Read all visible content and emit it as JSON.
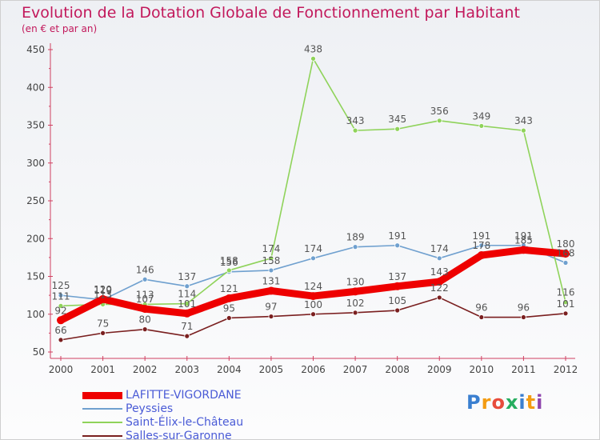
{
  "chart_data": {
    "type": "line",
    "title": "Evolution de la Dotation Globale de Fonctionnement par Habitant",
    "subtitle": "(en € et par an)",
    "xlabel": "",
    "ylabel": "",
    "categories": [
      "2000",
      "2001",
      "2002",
      "2003",
      "2004",
      "2005",
      "2006",
      "2007",
      "2008",
      "2009",
      "2010",
      "2011",
      "2012"
    ],
    "ylim": [
      50,
      450
    ],
    "yticks": [
      50,
      100,
      150,
      200,
      250,
      300,
      350,
      400,
      450
    ],
    "grid": false,
    "legend_position": "bottom-left",
    "series": [
      {
        "name": "LAFITTE-VIGORDANE",
        "color": "#ee0000",
        "values": [
          92,
          120,
          107,
          101,
          121,
          131,
          124,
          130,
          137,
          143,
          178,
          185,
          180
        ]
      },
      {
        "name": "Peyssies",
        "color": "#6fa0cf",
        "values": [
          125,
          119,
          146,
          137,
          156,
          158,
          174,
          189,
          191,
          174,
          191,
          191,
          168
        ]
      },
      {
        "name": "Saint-Élix-le-Château",
        "color": "#8fd35a",
        "values": [
          111,
          113,
          113,
          114,
          158,
          174,
          438,
          343,
          345,
          356,
          349,
          343,
          116
        ]
      },
      {
        "name": "Salles-sur-Garonne",
        "color": "#7a1f1f",
        "values": [
          66,
          75,
          80,
          71,
          95,
          97,
          100,
          102,
          105,
          122,
          96,
          96,
          101
        ]
      }
    ]
  },
  "logo": {
    "text": "Proxiti",
    "colors": [
      "#3a7fd0",
      "#f39c12",
      "#e74c3c",
      "#27ae60",
      "#3a7fd0",
      "#f39c12",
      "#8e44ad"
    ]
  }
}
